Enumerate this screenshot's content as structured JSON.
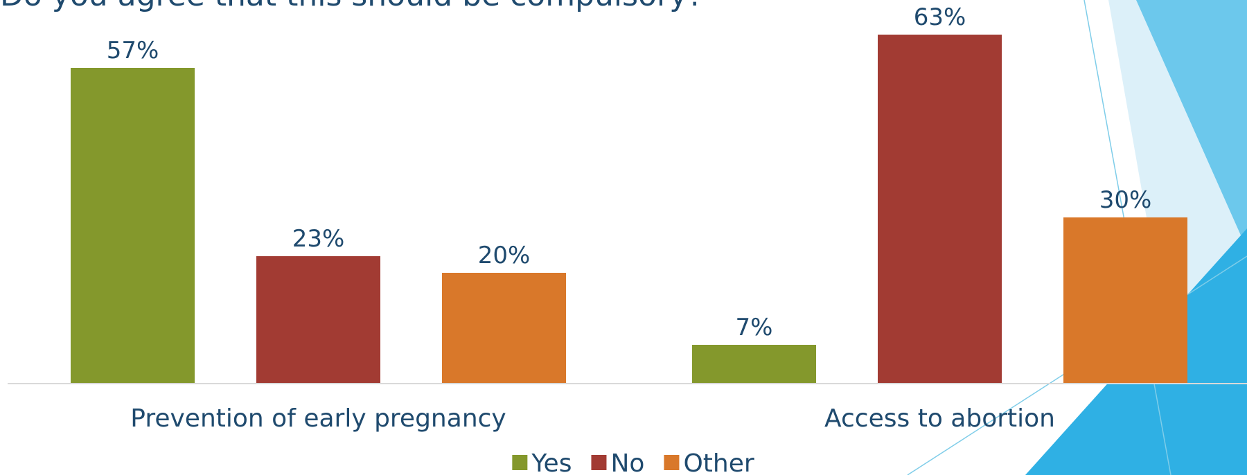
{
  "chart_data": {
    "type": "bar",
    "title": "Do you agree that this should be compulsory?",
    "categories": [
      "Prevention of early pregnancy",
      "Access to abortion"
    ],
    "series": [
      {
        "name": "Yes",
        "color": "#84982c",
        "values": [
          57,
          7
        ],
        "value_labels": [
          "57%",
          "7%"
        ]
      },
      {
        "name": "No",
        "color": "#a23b33",
        "values": [
          23,
          63
        ],
        "value_labels": [
          "23%",
          "63%"
        ]
      },
      {
        "name": "Other",
        "color": "#d9782a",
        "values": [
          20,
          30
        ],
        "value_labels": [
          "20%",
          "30%"
        ]
      }
    ],
    "legend": "bottom"
  }
}
